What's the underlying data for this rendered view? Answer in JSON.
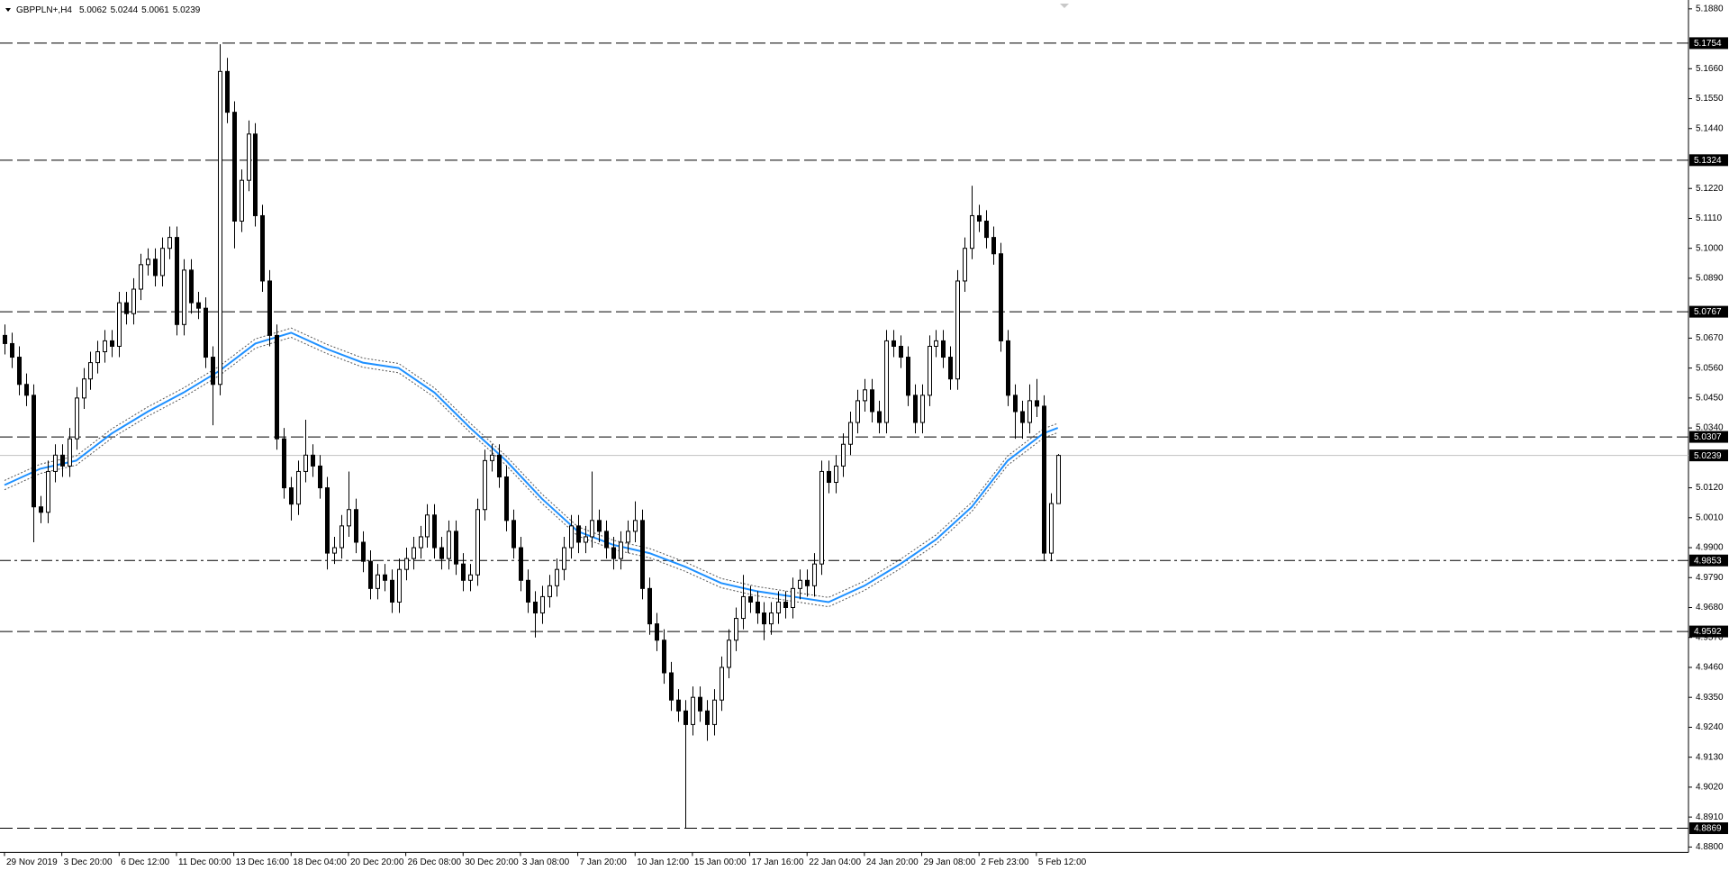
{
  "chart_data": {
    "type": "candlestick",
    "symbol": "GBPPLN+,H4",
    "up_color": "#ffffff",
    "down_color": "#000000",
    "outline_color": "#000000",
    "bid_line_color": "#c0c0c0",
    "ylim": [
      4.878,
      5.19
    ],
    "xlim": [
      -0.5,
      235
    ],
    "yticks": [
      {
        "value": 5.188,
        "label": "5.1880"
      },
      {
        "value": 5.166,
        "label": "5.1660"
      },
      {
        "value": 5.155,
        "label": "5.1550"
      },
      {
        "value": 5.144,
        "label": "5.1440"
      },
      {
        "value": 5.122,
        "label": "5.1220"
      },
      {
        "value": 5.111,
        "label": "5.1110"
      },
      {
        "value": 5.1,
        "label": "5.1000"
      },
      {
        "value": 5.089,
        "label": "5.0890"
      },
      {
        "value": 5.067,
        "label": "5.0670"
      },
      {
        "value": 5.056,
        "label": "5.0560"
      },
      {
        "value": 5.045,
        "label": "5.0450"
      },
      {
        "value": 5.034,
        "label": "5.0340"
      },
      {
        "value": 5.012,
        "label": "5.0120"
      },
      {
        "value": 5.001,
        "label": "5.0010"
      },
      {
        "value": 4.99,
        "label": "4.9900"
      },
      {
        "value": 4.979,
        "label": "4.9790"
      },
      {
        "value": 4.968,
        "label": "4.9680"
      },
      {
        "value": 4.957,
        "label": "4.9570"
      },
      {
        "value": 4.946,
        "label": "4.9460"
      },
      {
        "value": 4.935,
        "label": "4.9350"
      },
      {
        "value": 4.924,
        "label": "4.9240"
      },
      {
        "value": 4.913,
        "label": "4.9130"
      },
      {
        "value": 4.902,
        "label": "4.9020"
      },
      {
        "value": 4.891,
        "label": "4.8910"
      },
      {
        "value": 4.88,
        "label": "4.8800"
      }
    ],
    "xticks": [
      {
        "value": 0,
        "label": "29 Nov 2019"
      },
      {
        "value": 8,
        "label": "3 Dec 20:00"
      },
      {
        "value": 16,
        "label": "6 Dec 12:00"
      },
      {
        "value": 24,
        "label": "11 Dec 00:00"
      },
      {
        "value": 32,
        "label": "13 Dec 16:00"
      },
      {
        "value": 40,
        "label": "18 Dec 04:00"
      },
      {
        "value": 48,
        "label": "20 Dec 20:00"
      },
      {
        "value": 56,
        "label": "26 Dec 08:00"
      },
      {
        "value": 64,
        "label": "30 Dec 20:00"
      },
      {
        "value": 72,
        "label": "3 Jan 08:00"
      },
      {
        "value": 80,
        "label": "7 Jan 20:00"
      },
      {
        "value": 88,
        "label": "10 Jan 12:00"
      },
      {
        "value": 96,
        "label": "15 Jan 00:00"
      },
      {
        "value": 104,
        "label": "17 Jan 16:00"
      },
      {
        "value": 112,
        "label": "22 Jan 04:00"
      },
      {
        "value": 120,
        "label": "24 Jan 20:00"
      },
      {
        "value": 128,
        "label": "29 Jan 08:00"
      },
      {
        "value": 136,
        "label": "2 Feb 23:00"
      },
      {
        "value": 144,
        "label": "5 Feb 12:00"
      }
    ],
    "levels": [
      {
        "value": 5.1754,
        "style": "dashed"
      },
      {
        "value": 5.1324,
        "style": "dashed"
      },
      {
        "value": 5.0767,
        "style": "dashed"
      },
      {
        "value": 5.0307,
        "style": "dashed"
      },
      {
        "value": 4.9853,
        "style": "dashdot"
      },
      {
        "value": 4.9592,
        "style": "dashed"
      },
      {
        "value": 4.8869,
        "style": "dashed"
      }
    ],
    "open": [
      5.068,
      5.065,
      5.06,
      5.05,
      5.046,
      5.005,
      5.003,
      5.018,
      5.024,
      5.02,
      5.03,
      5.045,
      5.052,
      5.058,
      5.062,
      5.066,
      5.064,
      5.08,
      5.076,
      5.085,
      5.094,
      5.096,
      5.09,
      5.1,
      5.104,
      5.072,
      5.092,
      5.08,
      5.078,
      5.06,
      5.05,
      5.165,
      5.15,
      5.11,
      5.125,
      5.142,
      5.112,
      5.088,
      5.068,
      5.03,
      5.012,
      5.006,
      5.018,
      5.024,
      5.02,
      5.012,
      4.988,
      4.99,
      4.998,
      5.004,
      4.992,
      4.985,
      4.975,
      4.98,
      4.978,
      4.97,
      4.982,
      4.986,
      4.99,
      4.994,
      5.002,
      4.99,
      4.986,
      4.996,
      4.984,
      4.978,
      4.98,
      5.004,
      5.022,
      5.024,
      5.016,
      5.0,
      4.99,
      4.978,
      4.97,
      4.966,
      4.972,
      4.976,
      4.982,
      4.99,
      4.998,
      4.992,
      4.994,
      5.0,
      4.996,
      4.99,
      4.986,
      4.992,
      4.996,
      5.0,
      4.975,
      4.962,
      4.956,
      4.944,
      4.934,
      4.93,
      4.925,
      4.935,
      4.93,
      4.925,
      4.934,
      4.946,
      4.956,
      4.964,
      4.972,
      4.97,
      4.966,
      4.962,
      4.966,
      4.97,
      4.968,
      4.975,
      4.978,
      4.976,
      4.984,
      5.018,
      5.014,
      5.02,
      5.028,
      5.036,
      5.044,
      5.048,
      5.04,
      5.036,
      5.066,
      5.064,
      5.06,
      5.046,
      5.036,
      5.046,
      5.064,
      5.066,
      5.06,
      5.052,
      5.088,
      5.1,
      5.112,
      5.11,
      5.104,
      5.098,
      5.066,
      5.046,
      5.04,
      5.036,
      5.044,
      5.042,
      4.988,
      5.0062
    ],
    "high": [
      5.072,
      5.069,
      5.064,
      5.054,
      5.05,
      5.009,
      5.022,
      5.028,
      5.028,
      5.034,
      5.049,
      5.056,
      5.062,
      5.066,
      5.07,
      5.07,
      5.084,
      5.084,
      5.089,
      5.098,
      5.1,
      5.1,
      5.104,
      5.108,
      5.108,
      5.096,
      5.096,
      5.084,
      5.082,
      5.064,
      5.175,
      5.17,
      5.154,
      5.129,
      5.147,
      5.146,
      5.116,
      5.092,
      5.072,
      5.034,
      5.016,
      5.022,
      5.037,
      5.028,
      5.024,
      5.016,
      4.994,
      5.002,
      5.018,
      5.008,
      4.996,
      4.989,
      4.984,
      4.984,
      4.982,
      4.986,
      4.99,
      4.994,
      4.998,
      5.006,
      5.006,
      4.994,
      5.0,
      5.0,
      4.988,
      4.984,
      5.008,
      5.026,
      5.028,
      5.028,
      5.02,
      5.004,
      4.994,
      4.982,
      4.974,
      4.976,
      4.98,
      4.986,
      4.994,
      5.002,
      5.002,
      4.998,
      5.018,
      5.004,
      5.0,
      4.994,
      4.996,
      5.0,
      5.007,
      5.004,
      4.979,
      4.966,
      4.96,
      4.948,
      4.938,
      4.934,
      4.939,
      4.939,
      4.934,
      4.938,
      4.95,
      4.96,
      4.968,
      4.98,
      4.976,
      4.974,
      4.97,
      4.97,
      4.974,
      4.974,
      4.979,
      4.982,
      4.982,
      4.988,
      5.022,
      5.022,
      5.024,
      5.032,
      5.04,
      5.048,
      5.052,
      5.052,
      5.044,
      5.07,
      5.07,
      5.068,
      5.064,
      5.05,
      5.05,
      5.068,
      5.07,
      5.07,
      5.064,
      5.092,
      5.104,
      5.123,
      5.116,
      5.114,
      5.108,
      5.102,
      5.07,
      5.05,
      5.044,
      5.05,
      5.052,
      5.046,
      5.01,
      5.0244
    ],
    "low": [
      5.061,
      5.056,
      5.046,
      5.042,
      4.992,
      4.999,
      4.999,
      5.014,
      5.016,
      5.016,
      5.026,
      5.041,
      5.048,
      5.054,
      5.058,
      5.06,
      5.06,
      5.072,
      5.072,
      5.081,
      5.09,
      5.086,
      5.086,
      5.096,
      5.068,
      5.068,
      5.076,
      5.074,
      5.056,
      5.035,
      5.046,
      5.146,
      5.1,
      5.106,
      5.121,
      5.108,
      5.084,
      5.064,
      5.026,
      5.008,
      5.0,
      5.002,
      5.014,
      5.016,
      5.008,
      4.982,
      4.984,
      4.986,
      4.994,
      4.988,
      4.981,
      4.971,
      4.971,
      4.974,
      4.966,
      4.966,
      4.978,
      4.982,
      4.986,
      4.99,
      4.986,
      4.982,
      4.982,
      4.98,
      4.974,
      4.974,
      4.976,
      5.0,
      5.018,
      5.012,
      4.996,
      4.986,
      4.974,
      4.966,
      4.957,
      4.962,
      4.968,
      4.972,
      4.978,
      4.986,
      4.988,
      4.988,
      4.99,
      4.992,
      4.986,
      4.982,
      4.982,
      4.988,
      4.992,
      4.971,
      4.958,
      4.952,
      4.94,
      4.93,
      4.926,
      4.887,
      4.921,
      4.926,
      4.919,
      4.921,
      4.93,
      4.942,
      4.952,
      4.96,
      4.966,
      4.962,
      4.956,
      4.958,
      4.962,
      4.964,
      4.964,
      4.971,
      4.972,
      4.972,
      4.98,
      5.01,
      5.01,
      5.016,
      5.024,
      5.032,
      5.04,
      5.036,
      5.032,
      5.032,
      5.06,
      5.056,
      5.042,
      5.032,
      5.032,
      5.042,
      5.06,
      5.056,
      5.048,
      5.048,
      5.084,
      5.096,
      5.106,
      5.1,
      5.094,
      5.062,
      5.042,
      5.03,
      5.03,
      5.032,
      5.038,
      4.985,
      4.985,
      5.0061
    ],
    "close": [
      5.065,
      5.06,
      5.05,
      5.046,
      5.005,
      5.003,
      5.018,
      5.024,
      5.02,
      5.03,
      5.045,
      5.052,
      5.058,
      5.062,
      5.066,
      5.064,
      5.08,
      5.076,
      5.085,
      5.094,
      5.096,
      5.09,
      5.1,
      5.104,
      5.072,
      5.092,
      5.08,
      5.078,
      5.06,
      5.05,
      5.165,
      5.15,
      5.11,
      5.125,
      5.142,
      5.112,
      5.088,
      5.068,
      5.03,
      5.012,
      5.006,
      5.018,
      5.024,
      5.02,
      5.012,
      4.988,
      4.99,
      4.998,
      5.004,
      4.992,
      4.985,
      4.975,
      4.98,
      4.978,
      4.97,
      4.982,
      4.986,
      4.99,
      4.994,
      5.002,
      4.99,
      4.986,
      4.996,
      4.984,
      4.978,
      4.98,
      5.004,
      5.022,
      5.024,
      5.016,
      5.0,
      4.99,
      4.978,
      4.97,
      4.966,
      4.972,
      4.976,
      4.982,
      4.99,
      4.998,
      4.992,
      4.994,
      5.0,
      4.996,
      4.99,
      4.986,
      4.992,
      4.996,
      5.0,
      4.975,
      4.962,
      4.956,
      4.944,
      4.934,
      4.93,
      4.925,
      4.935,
      4.93,
      4.925,
      4.934,
      4.946,
      4.956,
      4.964,
      4.972,
      4.97,
      4.966,
      4.962,
      4.966,
      4.97,
      4.968,
      4.975,
      4.978,
      4.976,
      4.984,
      5.018,
      5.014,
      5.02,
      5.028,
      5.036,
      5.044,
      5.048,
      5.04,
      5.036,
      5.066,
      5.064,
      5.06,
      5.046,
      5.036,
      5.046,
      5.064,
      5.066,
      5.06,
      5.052,
      5.088,
      5.1,
      5.112,
      5.11,
      5.104,
      5.098,
      5.066,
      5.046,
      5.04,
      5.036,
      5.044,
      5.042,
      4.988,
      5.0062,
      5.0239
    ],
    "indicators": [
      {
        "color": "#1e90ff",
        "style": "solid",
        "x": [
          0,
          5,
          10,
          15,
          20,
          25,
          30,
          35,
          40,
          45,
          50,
          55,
          60,
          65,
          70,
          75,
          80,
          85,
          90,
          95,
          100,
          105,
          110,
          115,
          120,
          125,
          130,
          135,
          140,
          145,
          147
        ],
        "values": [
          5.013,
          5.019,
          5.022,
          5.032,
          5.04,
          5.047,
          5.055,
          5.065,
          5.069,
          5.063,
          5.058,
          5.056,
          5.047,
          5.034,
          5.022,
          5.008,
          4.996,
          4.991,
          4.988,
          4.983,
          4.977,
          4.974,
          4.972,
          4.97,
          4.976,
          4.984,
          4.993,
          5.005,
          5.022,
          5.032,
          5.034
        ]
      },
      {
        "color": "#555555",
        "style": "dotted",
        "x": [
          0,
          5,
          10,
          15,
          20,
          25,
          30,
          35,
          40,
          45,
          50,
          55,
          60,
          65,
          70,
          75,
          80,
          85,
          90,
          95,
          100,
          105,
          110,
          115,
          120,
          125,
          130,
          135,
          140,
          145,
          147
        ],
        "values": [
          5.0147,
          5.0207,
          5.0237,
          5.0337,
          5.0417,
          5.0487,
          5.0567,
          5.0667,
          5.0707,
          5.0647,
          5.0597,
          5.0577,
          5.0487,
          5.0357,
          5.0237,
          5.0097,
          4.9977,
          4.9927,
          4.9897,
          4.9847,
          4.9787,
          4.9757,
          4.9737,
          4.9717,
          4.9777,
          4.9857,
          4.9947,
          5.0067,
          5.0237,
          5.0337,
          5.0357
        ]
      },
      {
        "color": "#555555",
        "style": "dotted",
        "x": [
          0,
          5,
          10,
          15,
          20,
          25,
          30,
          35,
          40,
          45,
          50,
          55,
          60,
          65,
          70,
          75,
          80,
          85,
          90,
          95,
          100,
          105,
          110,
          115,
          120,
          125,
          130,
          135,
          140,
          145,
          147
        ],
        "values": [
          5.0113,
          5.0173,
          5.0203,
          5.0303,
          5.0383,
          5.0453,
          5.0533,
          5.0633,
          5.0673,
          5.0613,
          5.0563,
          5.0543,
          5.0453,
          5.0323,
          5.0203,
          5.0063,
          4.9943,
          4.9893,
          4.9863,
          4.9813,
          4.9753,
          4.9723,
          4.9703,
          4.9683,
          4.9743,
          4.9823,
          4.9913,
          5.0033,
          5.0203,
          5.0303,
          5.0323
        ]
      }
    ]
  }
}
